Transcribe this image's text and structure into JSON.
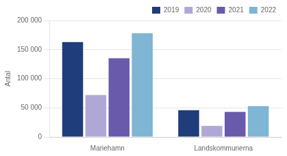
{
  "chart_data": {
    "type": "bar",
    "ylabel": "Antal",
    "categories": [
      "Mariehamn",
      "Landskommunerna"
    ],
    "series": [
      {
        "name": "2019",
        "color": "#1f3d7a",
        "values": [
          163000,
          46000
        ]
      },
      {
        "name": "2020",
        "color": "#b0a8d4",
        "values": [
          72000,
          19000
        ]
      },
      {
        "name": "2021",
        "color": "#6a5aab",
        "values": [
          135000,
          43000
        ]
      },
      {
        "name": "2022",
        "color": "#7eb6d4",
        "values": [
          178000,
          53000
        ]
      }
    ],
    "ylim": [
      0,
      200000
    ],
    "yticks": [
      0,
      {
        "value": 50000,
        "label": "50 000"
      },
      {
        "value": 100000,
        "label": "100 000"
      },
      {
        "value": 150000,
        "label": "150 000"
      },
      {
        "value": 200000,
        "label": "200 000"
      }
    ],
    "grid": true,
    "legend": "upper right"
  }
}
